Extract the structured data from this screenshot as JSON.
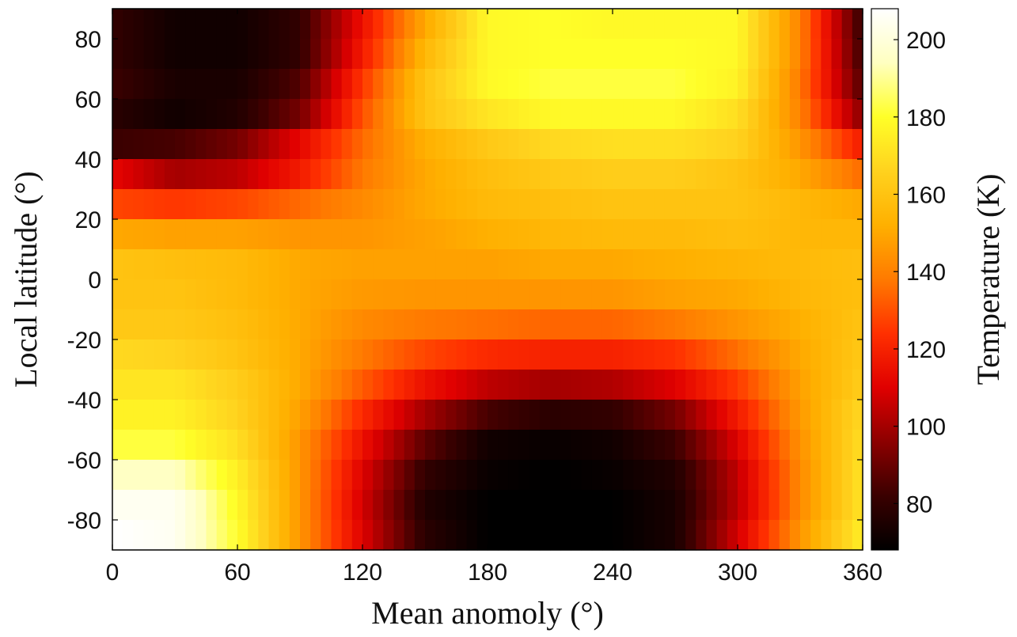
{
  "chart_data": {
    "type": "heatmap",
    "xlabel": "Mean anomoly (°)",
    "ylabel": "Local latitude (°)",
    "x_ticks": [
      0,
      60,
      120,
      180,
      240,
      300,
      360
    ],
    "y_ticks": [
      80,
      60,
      40,
      20,
      0,
      -20,
      -40,
      -60,
      -80
    ],
    "xlim": [
      0,
      360
    ],
    "ylim": [
      -90,
      90
    ],
    "colorbar": {
      "label": "Temperature (K)",
      "range": [
        68,
        208
      ],
      "ticks": [
        80,
        100,
        120,
        140,
        160,
        180,
        200
      ],
      "colormap": [
        "#000000",
        "#3a0000",
        "#8c0000",
        "#e00000",
        "#ff3000",
        "#ff7a00",
        "#ffb000",
        "#ffd21e",
        "#ffff28",
        "#ffffc0",
        "#ffffff"
      ]
    },
    "latitude_bands": [
      85,
      75,
      65,
      55,
      45,
      35,
      25,
      15,
      5,
      -5,
      -15,
      -25,
      -35,
      -45,
      -55,
      -65,
      -75,
      -85
    ],
    "mean_anomaly_nodes": [
      0,
      30,
      60,
      90,
      120,
      150,
      180,
      210,
      240,
      270,
      300,
      330,
      360
    ],
    "temperature": [
      [
        80,
        72,
        72,
        80,
        115,
        150,
        178,
        180,
        178,
        178,
        178,
        140,
        80
      ],
      [
        80,
        72,
        72,
        80,
        118,
        155,
        178,
        180,
        180,
        180,
        178,
        140,
        82
      ],
      [
        82,
        74,
        74,
        86,
        125,
        160,
        178,
        182,
        182,
        182,
        176,
        138,
        86
      ],
      [
        78,
        72,
        76,
        92,
        130,
        160,
        172,
        178,
        178,
        178,
        170,
        140,
        95
      ],
      [
        82,
        84,
        92,
        112,
        135,
        152,
        162,
        168,
        170,
        170,
        166,
        145,
        118
      ],
      [
        112,
        100,
        104,
        118,
        138,
        150,
        158,
        162,
        164,
        164,
        160,
        150,
        135
      ],
      [
        128,
        125,
        128,
        135,
        142,
        150,
        156,
        158,
        160,
        160,
        160,
        155,
        150
      ],
      [
        150,
        148,
        148,
        145,
        145,
        148,
        152,
        155,
        156,
        156,
        158,
        155,
        155
      ],
      [
        160,
        158,
        156,
        150,
        148,
        148,
        148,
        150,
        150,
        152,
        154,
        156,
        158
      ],
      [
        160,
        160,
        156,
        150,
        146,
        145,
        145,
        145,
        145,
        148,
        150,
        155,
        158
      ],
      [
        162,
        162,
        158,
        150,
        142,
        138,
        136,
        134,
        134,
        138,
        145,
        152,
        160
      ],
      [
        168,
        166,
        160,
        150,
        138,
        128,
        122,
        120,
        120,
        124,
        136,
        150,
        162
      ],
      [
        172,
        172,
        164,
        150,
        132,
        115,
        104,
        100,
        102,
        110,
        126,
        148,
        164
      ],
      [
        176,
        176,
        166,
        148,
        122,
        100,
        84,
        78,
        80,
        92,
        118,
        146,
        168
      ],
      [
        182,
        182,
        170,
        145,
        115,
        88,
        72,
        70,
        72,
        82,
        110,
        144,
        170
      ],
      [
        195,
        195,
        175,
        145,
        110,
        80,
        70,
        68,
        70,
        76,
        105,
        142,
        172
      ],
      [
        205,
        205,
        178,
        145,
        108,
        76,
        68,
        68,
        68,
        74,
        104,
        142,
        172
      ],
      [
        208,
        205,
        180,
        145,
        110,
        78,
        68,
        68,
        68,
        74,
        108,
        145,
        175
      ]
    ]
  }
}
